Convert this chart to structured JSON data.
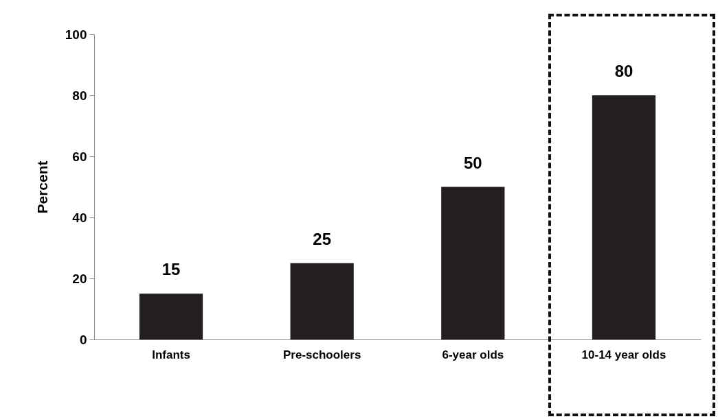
{
  "chart_data": {
    "type": "bar",
    "ylabel": "Percent",
    "categories": [
      "Infants",
      "Pre-schoolers",
      "6-year olds",
      "10-14 year olds"
    ],
    "values": [
      15,
      25,
      50,
      80
    ],
    "color": "#231f20",
    "ylim": [
      0,
      100
    ],
    "yticks": [
      0,
      20,
      40,
      60,
      80,
      100
    ],
    "grid": false,
    "data_labels": true
  }
}
